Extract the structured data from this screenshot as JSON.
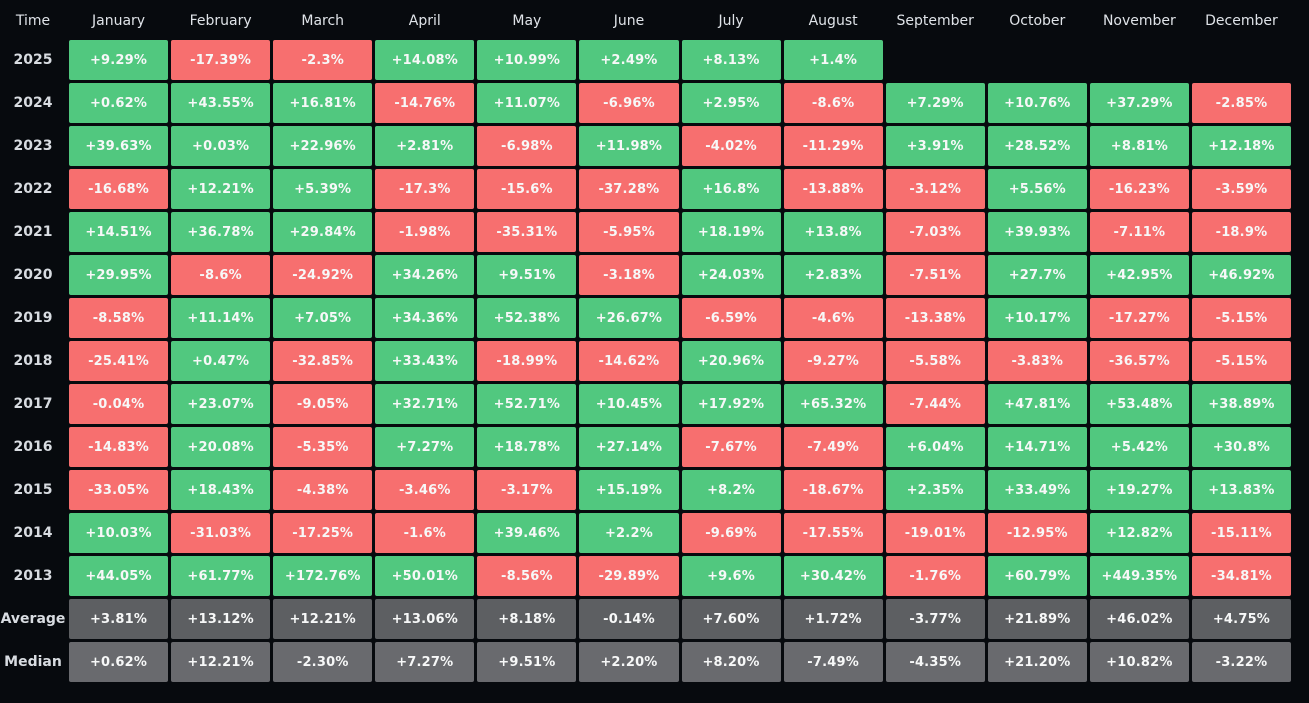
{
  "table": {
    "corner_label": "Time",
    "colors": {
      "positive": "#51c87f",
      "negative": "#f76f6f",
      "average_row": "#5d5f62",
      "median_row": "#696a6e",
      "background": "#070a0e",
      "cell_text": "#f7f8f8",
      "header_text": "#dfe3e8"
    }
  },
  "chart_data": {
    "type": "heatmap",
    "title": "Monthly returns (%) by year with Average and Median summary rows",
    "columns": [
      "January",
      "February",
      "March",
      "April",
      "May",
      "June",
      "July",
      "August",
      "September",
      "October",
      "November",
      "December"
    ],
    "rows": [
      {
        "label": "2025",
        "kind": "year",
        "values": [
          "+9.29%",
          "-17.39%",
          "-2.3%",
          "+14.08%",
          "+10.99%",
          "+2.49%",
          "+8.13%",
          "+1.4%",
          null,
          null,
          null,
          null
        ]
      },
      {
        "label": "2024",
        "kind": "year",
        "values": [
          "+0.62%",
          "+43.55%",
          "+16.81%",
          "-14.76%",
          "+11.07%",
          "-6.96%",
          "+2.95%",
          "-8.6%",
          "+7.29%",
          "+10.76%",
          "+37.29%",
          "-2.85%"
        ]
      },
      {
        "label": "2023",
        "kind": "year",
        "values": [
          "+39.63%",
          "+0.03%",
          "+22.96%",
          "+2.81%",
          "-6.98%",
          "+11.98%",
          "-4.02%",
          "-11.29%",
          "+3.91%",
          "+28.52%",
          "+8.81%",
          "+12.18%"
        ]
      },
      {
        "label": "2022",
        "kind": "year",
        "values": [
          "-16.68%",
          "+12.21%",
          "+5.39%",
          "-17.3%",
          "-15.6%",
          "-37.28%",
          "+16.8%",
          "-13.88%",
          "-3.12%",
          "+5.56%",
          "-16.23%",
          "-3.59%"
        ]
      },
      {
        "label": "2021",
        "kind": "year",
        "values": [
          "+14.51%",
          "+36.78%",
          "+29.84%",
          "-1.98%",
          "-35.31%",
          "-5.95%",
          "+18.19%",
          "+13.8%",
          "-7.03%",
          "+39.93%",
          "-7.11%",
          "-18.9%"
        ]
      },
      {
        "label": "2020",
        "kind": "year",
        "values": [
          "+29.95%",
          "-8.6%",
          "-24.92%",
          "+34.26%",
          "+9.51%",
          "-3.18%",
          "+24.03%",
          "+2.83%",
          "-7.51%",
          "+27.7%",
          "+42.95%",
          "+46.92%"
        ]
      },
      {
        "label": "2019",
        "kind": "year",
        "values": [
          "-8.58%",
          "+11.14%",
          "+7.05%",
          "+34.36%",
          "+52.38%",
          "+26.67%",
          "-6.59%",
          "-4.6%",
          "-13.38%",
          "+10.17%",
          "-17.27%",
          "-5.15%"
        ]
      },
      {
        "label": "2018",
        "kind": "year",
        "values": [
          "-25.41%",
          "+0.47%",
          "-32.85%",
          "+33.43%",
          "-18.99%",
          "-14.62%",
          "+20.96%",
          "-9.27%",
          "-5.58%",
          "-3.83%",
          "-36.57%",
          "-5.15%"
        ]
      },
      {
        "label": "2017",
        "kind": "year",
        "values": [
          "-0.04%",
          "+23.07%",
          "-9.05%",
          "+32.71%",
          "+52.71%",
          "+10.45%",
          "+17.92%",
          "+65.32%",
          "-7.44%",
          "+47.81%",
          "+53.48%",
          "+38.89%"
        ]
      },
      {
        "label": "2016",
        "kind": "year",
        "values": [
          "-14.83%",
          "+20.08%",
          "-5.35%",
          "+7.27%",
          "+18.78%",
          "+27.14%",
          "-7.67%",
          "-7.49%",
          "+6.04%",
          "+14.71%",
          "+5.42%",
          "+30.8%"
        ]
      },
      {
        "label": "2015",
        "kind": "year",
        "values": [
          "-33.05%",
          "+18.43%",
          "-4.38%",
          "-3.46%",
          "-3.17%",
          "+15.19%",
          "+8.2%",
          "-18.67%",
          "+2.35%",
          "+33.49%",
          "+19.27%",
          "+13.83%"
        ]
      },
      {
        "label": "2014",
        "kind": "year",
        "values": [
          "+10.03%",
          "-31.03%",
          "-17.25%",
          "-1.6%",
          "+39.46%",
          "+2.2%",
          "-9.69%",
          "-17.55%",
          "-19.01%",
          "-12.95%",
          "+12.82%",
          "-15.11%"
        ]
      },
      {
        "label": "2013",
        "kind": "year",
        "values": [
          "+44.05%",
          "+61.77%",
          "+172.76%",
          "+50.01%",
          "-8.56%",
          "-29.89%",
          "+9.6%",
          "+30.42%",
          "-1.76%",
          "+60.79%",
          "+449.35%",
          "-34.81%"
        ]
      },
      {
        "label": "Average",
        "kind": "average",
        "values": [
          "+3.81%",
          "+13.12%",
          "+12.21%",
          "+13.06%",
          "+8.18%",
          "-0.14%",
          "+7.60%",
          "+1.72%",
          "-3.77%",
          "+21.89%",
          "+46.02%",
          "+4.75%"
        ]
      },
      {
        "label": "Median",
        "kind": "median",
        "values": [
          "+0.62%",
          "+12.21%",
          "-2.30%",
          "+7.27%",
          "+9.51%",
          "+2.20%",
          "+8.20%",
          "-7.49%",
          "-4.35%",
          "+21.20%",
          "+10.82%",
          "-3.22%"
        ]
      }
    ]
  }
}
